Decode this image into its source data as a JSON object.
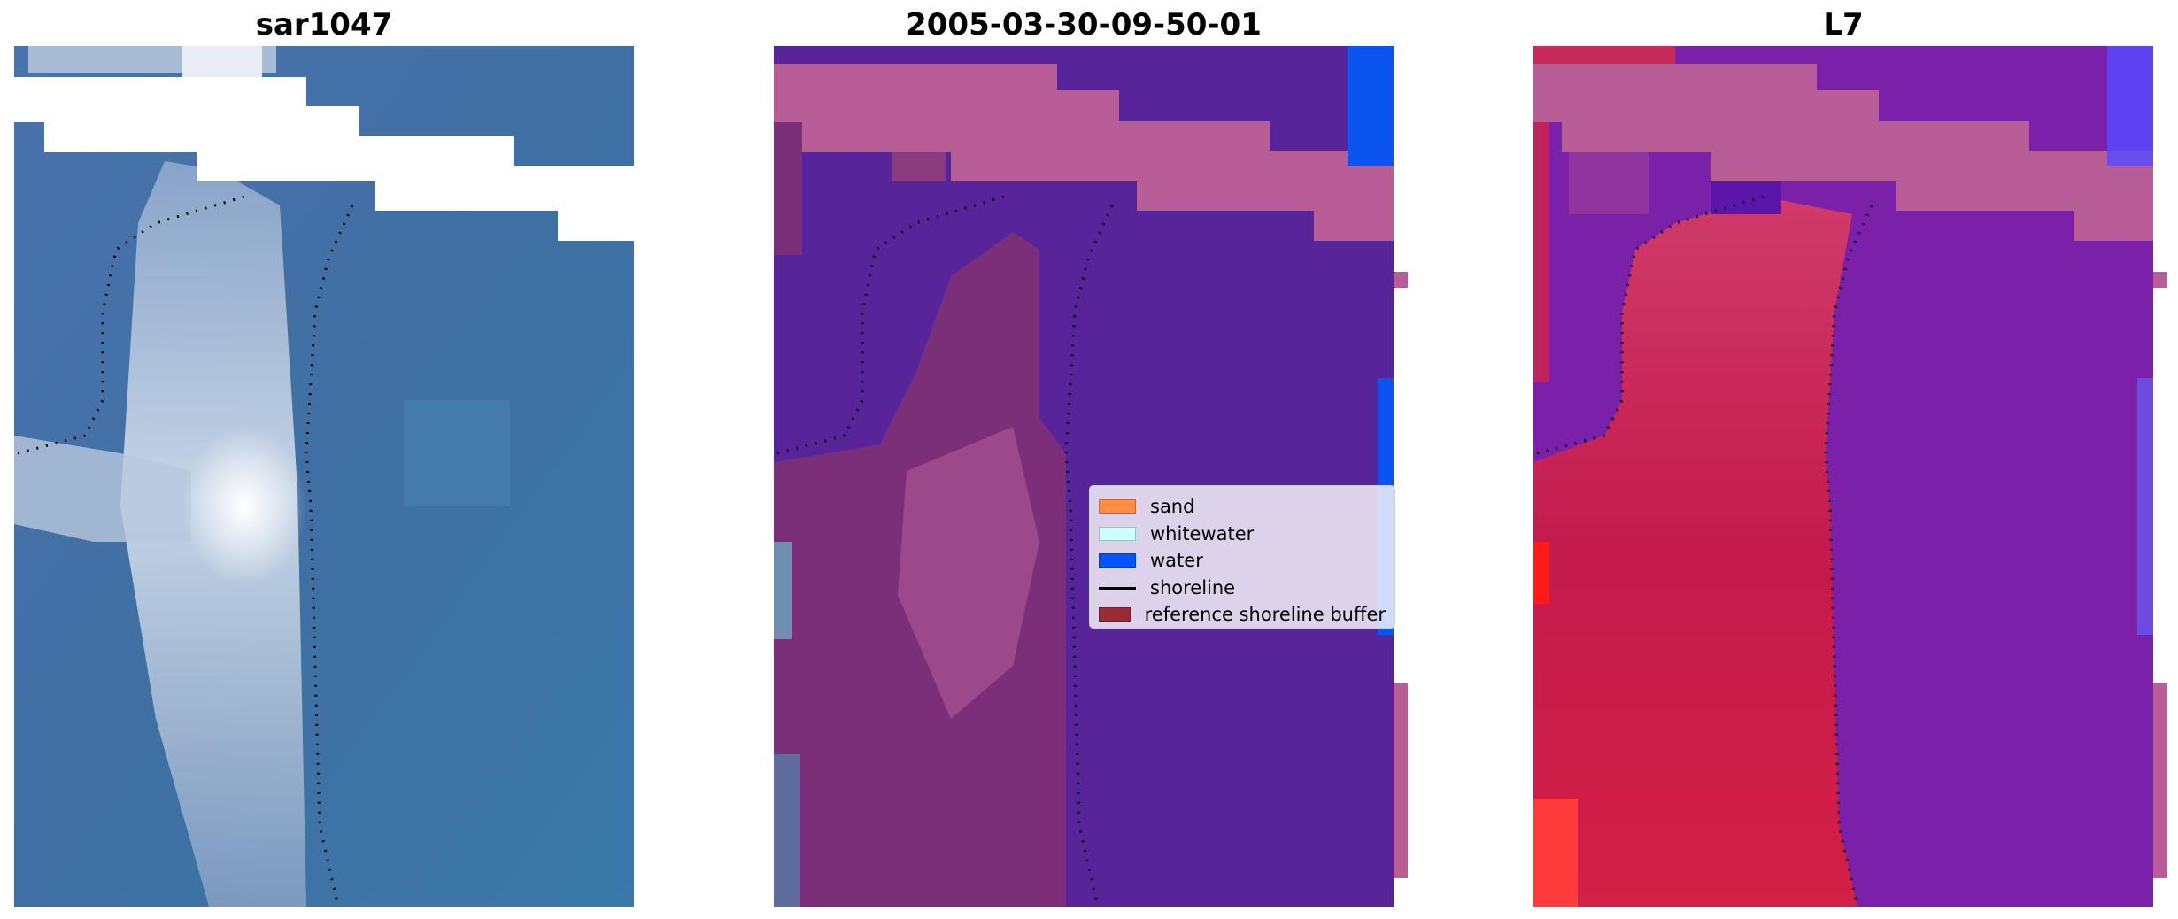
{
  "panels": [
    {
      "title": "sar1047",
      "style": "rgb"
    },
    {
      "title": "2005-03-30-09-50-01",
      "style": "classified"
    },
    {
      "title": "L7",
      "style": "index"
    }
  ],
  "legend": {
    "items": [
      {
        "label": "sand",
        "kind": "patch",
        "color": "#ff8c40"
      },
      {
        "label": "whitewater",
        "kind": "patch",
        "color": "#ccffff"
      },
      {
        "label": "water",
        "kind": "patch",
        "color": "#0055ff"
      },
      {
        "label": "shoreline",
        "kind": "line",
        "color": "#000000"
      },
      {
        "label": "reference shoreline buffer",
        "kind": "patch",
        "color": "#9b2c36"
      }
    ]
  },
  "colors": {
    "rgb_water": "#3f6fa3",
    "rgb_bright": "#e9eef6",
    "classified_water": "#58249a",
    "classified_buffer": "#b85e96",
    "classified_land": "#8a3b7e",
    "water_blue": "#0a55f0",
    "index_purple": "#7b20a8",
    "index_red": "#c8184a",
    "shoreline": "#000000"
  }
}
